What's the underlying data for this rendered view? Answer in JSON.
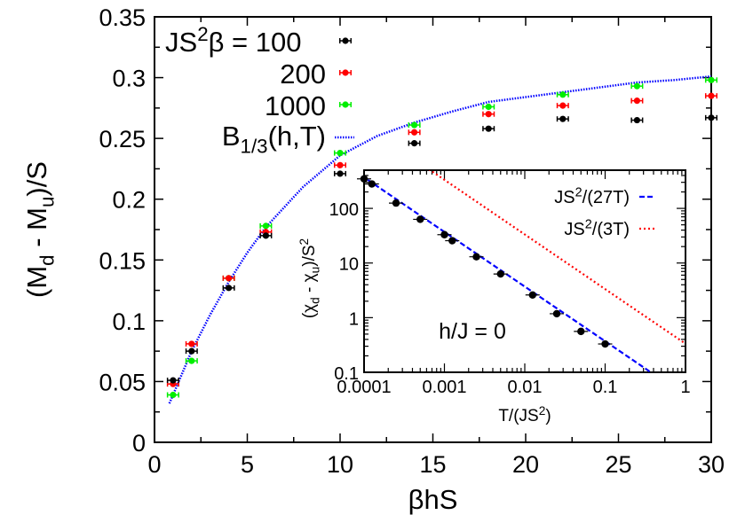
{
  "chart_data": [
    {
      "type": "scatter",
      "xlabel": [
        {
          "t": "βhS"
        }
      ],
      "ylabel": [
        {
          "t": "(M"
        },
        {
          "t": "d",
          "sub": true
        },
        {
          "t": " - M"
        },
        {
          "t": "u",
          "sub": true
        },
        {
          "t": ")/S"
        }
      ],
      "xlim": [
        0,
        30
      ],
      "ylim": [
        0,
        0.35
      ],
      "xticks": [
        "0",
        "5",
        "10",
        "15",
        "20",
        "25",
        "30"
      ],
      "yticks": [
        "0",
        "0.05",
        "0.1",
        "0.15",
        "0.2",
        "0.25",
        "0.3",
        "0.35"
      ],
      "grid": false,
      "legend_placement": "top-left",
      "legend_header": [
        {
          "t": "JS"
        },
        {
          "t": "2",
          "sup": true
        },
        {
          "t": "β = "
        }
      ],
      "xerr": 0.3,
      "series": [
        {
          "name": "100",
          "color": "#000000",
          "x": [
            1,
            2,
            4,
            6,
            10,
            14,
            18,
            22,
            26,
            30
          ],
          "y": [
            0.051,
            0.075,
            0.127,
            0.17,
            0.221,
            0.246,
            0.258,
            0.266,
            0.265,
            0.267
          ]
        },
        {
          "name": "200",
          "color": "#ff0000",
          "x": [
            1,
            2,
            4,
            6,
            10,
            14,
            18,
            22,
            26,
            30
          ],
          "y": [
            0.048,
            0.081,
            0.135,
            0.173,
            0.228,
            0.255,
            0.27,
            0.277,
            0.281,
            0.285
          ]
        },
        {
          "name": "1000",
          "color": "#00ee00",
          "x": [
            1,
            2,
            4,
            6,
            10,
            14,
            18,
            22,
            26,
            30
          ],
          "y": [
            0.039,
            0.067,
            0.135,
            0.178,
            0.238,
            0.261,
            0.276,
            0.286,
            0.293,
            0.298
          ]
        }
      ],
      "curve": {
        "name": [
          {
            "t": "B"
          },
          {
            "t": "1/3",
            "sub": true
          },
          {
            "t": "(h,T)"
          }
        ],
        "color": "#0000ff",
        "style": "dotted",
        "x": [
          0.8,
          1,
          2,
          3,
          4,
          5,
          6,
          8,
          10,
          12,
          14,
          16,
          18,
          20,
          22,
          24,
          26,
          28,
          30
        ],
        "y": [
          0.032,
          0.039,
          0.075,
          0.105,
          0.132,
          0.156,
          0.177,
          0.21,
          0.236,
          0.252,
          0.263,
          0.272,
          0.28,
          0.284,
          0.288,
          0.292,
          0.296,
          0.298,
          0.301
        ]
      }
    },
    {
      "type": "scatter",
      "xscale": "log",
      "yscale": "log",
      "xlabel": [
        {
          "t": "T/(JS"
        },
        {
          "t": "2",
          "sup": true
        },
        {
          "t": ")"
        }
      ],
      "ylabel": [
        {
          "t": "(χ"
        },
        {
          "t": "d",
          "sub": true
        },
        {
          "t": " - χ"
        },
        {
          "t": "u",
          "sub": true
        },
        {
          "t": ")/S"
        },
        {
          "t": "2",
          "sup": true
        }
      ],
      "xlim": [
        0.0001,
        1
      ],
      "ylim": [
        0.1,
        500
      ],
      "xticks": [
        "0.0001",
        "0.001",
        "0.01",
        "0.1",
        "1"
      ],
      "yticks": [
        "0.1",
        "1",
        "10",
        "100"
      ],
      "annotation": "h/J = 0",
      "legend_placement": "top-right",
      "points": {
        "color": "#000000",
        "x": [
          0.0001,
          0.000125,
          0.00025,
          0.0005,
          0.001,
          0.00125,
          0.0025,
          0.005,
          0.0125,
          0.025,
          0.05,
          0.1
        ],
        "y": [
          347,
          280,
          125,
          63,
          33,
          25.6,
          13,
          6.3,
          2.6,
          1.18,
          0.56,
          0.33
        ]
      },
      "lines": [
        {
          "name": [
            {
              "t": "JS"
            },
            {
              "t": "2",
              "sup": true
            },
            {
              "t": "/(27T)"
            }
          ],
          "color": "#0000ff",
          "style": "dashed",
          "coefficient": 0.037037
        },
        {
          "name": [
            {
              "t": "JS"
            },
            {
              "t": "2",
              "sup": true
            },
            {
              "t": "/(3T)"
            }
          ],
          "color": "#ff0000",
          "style": "dotted",
          "coefficient": 0.333333
        }
      ]
    }
  ]
}
